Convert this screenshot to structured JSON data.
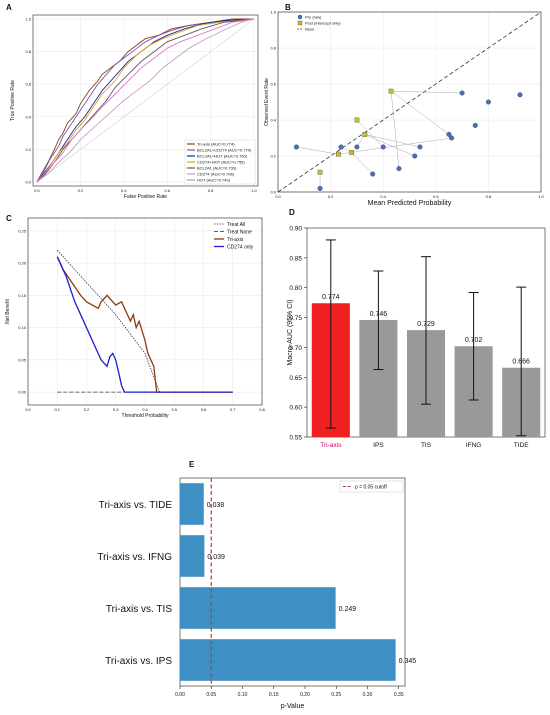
{
  "chart_data": [
    {
      "panel": "A",
      "type": "line",
      "xlabel": "False Positive Rate",
      "ylabel": "True Positive Rate",
      "xlim": [
        0,
        1
      ],
      "ylim": [
        0,
        1
      ],
      "xticks": [
        "0.0",
        "0.2",
        "0.4",
        "0.6",
        "0.8",
        "1.0"
      ],
      "yticks": [
        "0.0",
        "0.2",
        "0.4",
        "0.6",
        "0.8",
        "1.0"
      ],
      "legend_position": "bottom-right",
      "series": [
        {
          "name": "Tri-axis (AUC=0.774)",
          "color": "#8b4513",
          "points": [
            [
              0,
              0
            ],
            [
              0.02,
              0.05
            ],
            [
              0.05,
              0.12
            ],
            [
              0.08,
              0.2
            ],
            [
              0.1,
              0.26
            ],
            [
              0.12,
              0.3
            ],
            [
              0.14,
              0.36
            ],
            [
              0.18,
              0.42
            ],
            [
              0.2,
              0.48
            ],
            [
              0.24,
              0.56
            ],
            [
              0.28,
              0.62
            ],
            [
              0.3,
              0.66
            ],
            [
              0.34,
              0.7
            ],
            [
              0.38,
              0.74
            ],
            [
              0.42,
              0.8
            ],
            [
              0.46,
              0.84
            ],
            [
              0.5,
              0.88
            ],
            [
              0.56,
              0.9
            ],
            [
              0.62,
              0.94
            ],
            [
              0.7,
              0.96
            ],
            [
              0.8,
              0.98
            ],
            [
              0.9,
              1
            ],
            [
              1,
              1
            ]
          ]
        },
        {
          "name": "BCL2A1+CD274 (AUC=0.770)",
          "color": "#7b55b5",
          "points": [
            [
              0,
              0
            ],
            [
              0.03,
              0.06
            ],
            [
              0.06,
              0.14
            ],
            [
              0.1,
              0.22
            ],
            [
              0.12,
              0.28
            ],
            [
              0.15,
              0.34
            ],
            [
              0.2,
              0.44
            ],
            [
              0.24,
              0.52
            ],
            [
              0.28,
              0.6
            ],
            [
              0.32,
              0.66
            ],
            [
              0.36,
              0.72
            ],
            [
              0.4,
              0.76
            ],
            [
              0.46,
              0.82
            ],
            [
              0.5,
              0.86
            ],
            [
              0.56,
              0.9
            ],
            [
              0.62,
              0.93
            ],
            [
              0.7,
              0.96
            ],
            [
              0.8,
              0.98
            ],
            [
              1,
              1
            ]
          ]
        },
        {
          "name": "BCL2A1+HOT (AUC=0.760)",
          "color": "#1f2b8f",
          "points": [
            [
              0,
              0
            ],
            [
              0.03,
              0.05
            ],
            [
              0.07,
              0.12
            ],
            [
              0.11,
              0.2
            ],
            [
              0.14,
              0.26
            ],
            [
              0.18,
              0.34
            ],
            [
              0.22,
              0.4
            ],
            [
              0.26,
              0.48
            ],
            [
              0.3,
              0.56
            ],
            [
              0.34,
              0.62
            ],
            [
              0.38,
              0.68
            ],
            [
              0.42,
              0.74
            ],
            [
              0.48,
              0.8
            ],
            [
              0.54,
              0.86
            ],
            [
              0.6,
              0.9
            ],
            [
              0.68,
              0.94
            ],
            [
              0.76,
              0.97
            ],
            [
              0.86,
              0.99
            ],
            [
              1,
              1
            ]
          ]
        },
        {
          "name": "CD274+HOT (AUC=0.755)",
          "color": "#e8a020",
          "points": [
            [
              0,
              0
            ],
            [
              0.03,
              0.04
            ],
            [
              0.06,
              0.1
            ],
            [
              0.1,
              0.18
            ],
            [
              0.14,
              0.24
            ],
            [
              0.18,
              0.32
            ],
            [
              0.22,
              0.38
            ],
            [
              0.26,
              0.46
            ],
            [
              0.3,
              0.54
            ],
            [
              0.36,
              0.62
            ],
            [
              0.4,
              0.7
            ],
            [
              0.46,
              0.78
            ],
            [
              0.52,
              0.84
            ],
            [
              0.58,
              0.88
            ],
            [
              0.66,
              0.92
            ],
            [
              0.74,
              0.96
            ],
            [
              0.84,
              0.98
            ],
            [
              1,
              1
            ]
          ]
        },
        {
          "name": "BCL2A1 (AUC=0.739)",
          "color": "#5a5a5a",
          "points": [
            [
              0,
              0
            ],
            [
              0.04,
              0.05
            ],
            [
              0.08,
              0.12
            ],
            [
              0.12,
              0.2
            ],
            [
              0.16,
              0.26
            ],
            [
              0.2,
              0.32
            ],
            [
              0.24,
              0.38
            ],
            [
              0.28,
              0.44
            ],
            [
              0.32,
              0.5
            ],
            [
              0.36,
              0.58
            ],
            [
              0.42,
              0.66
            ],
            [
              0.48,
              0.74
            ],
            [
              0.54,
              0.8
            ],
            [
              0.6,
              0.86
            ],
            [
              0.68,
              0.9
            ],
            [
              0.76,
              0.94
            ],
            [
              0.86,
              0.98
            ],
            [
              1,
              1
            ]
          ]
        },
        {
          "name": "CD274 (AUC=0.706)",
          "color": "#c4a0c8",
          "points": [
            [
              0,
              0
            ],
            [
              0.05,
              0.05
            ],
            [
              0.1,
              0.12
            ],
            [
              0.15,
              0.18
            ],
            [
              0.2,
              0.26
            ],
            [
              0.25,
              0.32
            ],
            [
              0.3,
              0.38
            ],
            [
              0.35,
              0.44
            ],
            [
              0.4,
              0.5
            ],
            [
              0.46,
              0.56
            ],
            [
              0.52,
              0.62
            ],
            [
              0.58,
              0.7
            ],
            [
              0.64,
              0.76
            ],
            [
              0.7,
              0.82
            ],
            [
              0.78,
              0.88
            ],
            [
              0.86,
              0.93
            ],
            [
              0.94,
              0.98
            ],
            [
              1,
              1
            ]
          ]
        },
        {
          "name": "HOT (AUC=0.749)",
          "color": "#e07ad0",
          "points": [
            [
              0,
              0
            ],
            [
              0.04,
              0.06
            ],
            [
              0.08,
              0.12
            ],
            [
              0.12,
              0.18
            ],
            [
              0.16,
              0.26
            ],
            [
              0.2,
              0.32
            ],
            [
              0.26,
              0.4
            ],
            [
              0.3,
              0.46
            ],
            [
              0.36,
              0.54
            ],
            [
              0.42,
              0.62
            ],
            [
              0.48,
              0.7
            ],
            [
              0.54,
              0.76
            ],
            [
              0.6,
              0.82
            ],
            [
              0.66,
              0.86
            ],
            [
              0.74,
              0.9
            ],
            [
              0.82,
              0.94
            ],
            [
              0.9,
              0.98
            ],
            [
              1,
              1
            ]
          ]
        }
      ]
    },
    {
      "panel": "B",
      "type": "scatter",
      "xlabel": "Mean Predicted Probability",
      "ylabel": "Observed Event Rate",
      "xlim": [
        0,
        1
      ],
      "ylim": [
        0,
        1
      ],
      "xticks": [
        "0.0",
        "0.2",
        "0.4",
        "0.6",
        "0.8",
        "1.0"
      ],
      "yticks": [
        "0.0",
        "0.2",
        "0.4",
        "0.6",
        "0.8",
        "1.0"
      ],
      "legend_position": "top-left",
      "legend": [
        "Pre (raw)",
        "Post (intercept only)",
        "Ideal"
      ],
      "series": [
        {
          "name": "Pre (raw)",
          "color": "#4a6fb5",
          "points": [
            [
              0.07,
              0.25
            ],
            [
              0.16,
              0.02
            ],
            [
              0.24,
              0.25
            ],
            [
              0.3,
              0.25
            ],
            [
              0.36,
              0.1
            ],
            [
              0.4,
              0.25
            ],
            [
              0.46,
              0.13
            ],
            [
              0.52,
              0.2
            ],
            [
              0.54,
              0.25
            ],
            [
              0.65,
              0.32
            ],
            [
              0.66,
              0.3
            ],
            [
              0.7,
              0.55
            ],
            [
              0.75,
              0.37
            ],
            [
              0.8,
              0.5
            ],
            [
              0.92,
              0.54
            ]
          ]
        },
        {
          "name": "Post (intercept only)",
          "color": "#c8c020",
          "points": [
            [
              0.16,
              0.11
            ],
            [
              0.23,
              0.21
            ],
            [
              0.28,
              0.22
            ],
            [
              0.3,
              0.4
            ],
            [
              0.33,
              0.32
            ],
            [
              0.43,
              0.56
            ]
          ]
        }
      ],
      "links": [
        [
          0,
          1
        ],
        [
          1,
          0
        ],
        [
          2,
          2
        ],
        [
          3,
          4
        ],
        [
          4,
          2
        ],
        [
          5,
          3
        ],
        [
          6,
          5
        ],
        [
          7,
          4
        ],
        [
          8,
          4
        ],
        [
          9,
          5
        ],
        [
          10,
          1
        ],
        [
          11,
          5
        ]
      ]
    },
    {
      "panel": "C",
      "type": "line",
      "xlabel": "Threshold Probability",
      "ylabel": "Net Benefit",
      "xlim": [
        0.0,
        0.8
      ],
      "ylim": [
        -0.02,
        0.27
      ],
      "xticks": [
        "0.0",
        "0.1",
        "0.2",
        "0.3",
        "0.4",
        "0.5",
        "0.6",
        "0.7",
        "0.8"
      ],
      "yticks": [
        "0.00",
        "0.05",
        "0.10",
        "0.15",
        "0.20",
        "0.25"
      ],
      "legend_position": "top-right",
      "series": [
        {
          "name": "Treat All",
          "color": "#333333",
          "dash": "1.5,1.2",
          "points": [
            [
              0.1,
              0.22
            ],
            [
              0.2,
              0.17
            ],
            [
              0.3,
              0.12
            ],
            [
              0.4,
              0.06
            ],
            [
              0.45,
              0.0
            ]
          ]
        },
        {
          "name": "Treat None",
          "color": "#333333",
          "dash": "4,2",
          "points": [
            [
              0.1,
              0.0
            ],
            [
              0.7,
              0.0
            ]
          ]
        },
        {
          "name": "Tri-axis",
          "color": "#8b3a10",
          "points": [
            [
              0.1,
              0.21
            ],
            [
              0.12,
              0.19
            ],
            [
              0.15,
              0.17
            ],
            [
              0.18,
              0.15
            ],
            [
              0.2,
              0.14
            ],
            [
              0.22,
              0.135
            ],
            [
              0.24,
              0.13
            ],
            [
              0.25,
              0.14
            ],
            [
              0.27,
              0.15
            ],
            [
              0.29,
              0.14
            ],
            [
              0.3,
              0.135
            ],
            [
              0.32,
              0.14
            ],
            [
              0.33,
              0.13
            ],
            [
              0.34,
              0.12
            ],
            [
              0.35,
              0.11
            ],
            [
              0.36,
              0.12
            ],
            [
              0.37,
              0.1
            ],
            [
              0.38,
              0.11
            ],
            [
              0.39,
              0.095
            ],
            [
              0.4,
              0.08
            ],
            [
              0.41,
              0.06
            ],
            [
              0.42,
              0.05
            ],
            [
              0.43,
              0.04
            ],
            [
              0.44,
              0.0
            ],
            [
              0.7,
              0.0
            ]
          ]
        },
        {
          "name": "CD274 only",
          "color": "#1c1ccf",
          "points": [
            [
              0.1,
              0.21
            ],
            [
              0.13,
              0.18
            ],
            [
              0.16,
              0.14
            ],
            [
              0.19,
              0.11
            ],
            [
              0.22,
              0.08
            ],
            [
              0.25,
              0.05
            ],
            [
              0.27,
              0.04
            ],
            [
              0.28,
              0.055
            ],
            [
              0.29,
              0.06
            ],
            [
              0.3,
              0.05
            ],
            [
              0.31,
              0.03
            ],
            [
              0.32,
              0.01
            ],
            [
              0.33,
              0.0
            ],
            [
              0.7,
              0.0
            ]
          ]
        }
      ]
    },
    {
      "panel": "D",
      "type": "bar",
      "ylabel": "Macro-AUC (95% CI)",
      "ylim": [
        0.55,
        0.9
      ],
      "yticks": [
        "0.55",
        "0.60",
        "0.65",
        "0.70",
        "0.75",
        "0.80",
        "0.85",
        "0.90"
      ],
      "categories": [
        "Tri-axis",
        "IPS",
        "TIS",
        "IFNG",
        "TIDE"
      ],
      "values": [
        0.774,
        0.746,
        0.729,
        0.702,
        0.666
      ],
      "value_labels": [
        "0.774",
        "0.746",
        "0.729",
        "0.702",
        "0.666"
      ],
      "ci_low": [
        0.565,
        0.663,
        0.605,
        0.612,
        0.552
      ],
      "ci_high": [
        0.88,
        0.828,
        0.852,
        0.792,
        0.801
      ],
      "colors": [
        "#f02020",
        "#999999",
        "#999999",
        "#999999",
        "#999999"
      ],
      "highlight_label_color": "#cc0066"
    },
    {
      "panel": "E",
      "type": "bar",
      "orientation": "horizontal",
      "xlabel": "p-Value",
      "xlim": [
        0,
        0.36
      ],
      "xticks": [
        "0.00",
        "0.05",
        "0.10",
        "0.15",
        "0.20",
        "0.25",
        "0.30",
        "0.35"
      ],
      "categories": [
        "Tri-axis vs. TIDE",
        "Tri-axis vs. IFNG",
        "Tri-axis vs. TIS",
        "Tri-axis vs. IPS"
      ],
      "values": [
        0.038,
        0.039,
        0.249,
        0.345
      ],
      "value_labels": [
        "0.038",
        "0.039",
        "0.249",
        "0.345"
      ],
      "color": "#3d8fc4",
      "cutoff": 0.05,
      "cutoff_label": "p = 0.05 cutoff",
      "cutoff_color": "#c0392b",
      "legend_position": "top-right"
    }
  ]
}
